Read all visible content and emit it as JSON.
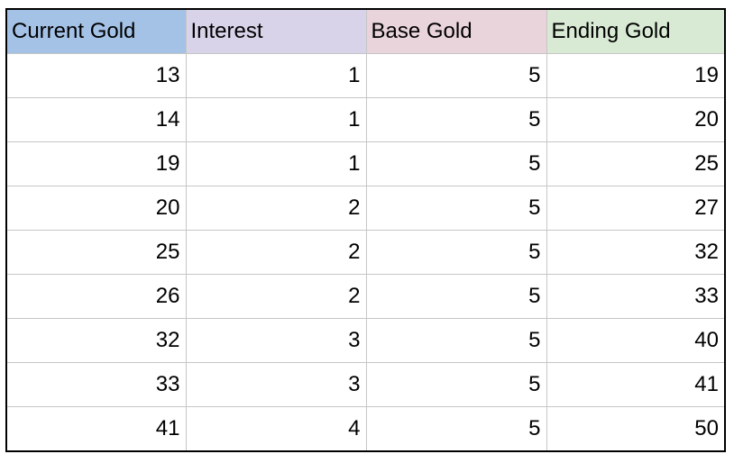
{
  "table": {
    "headers": [
      {
        "label": "Current Gold",
        "color": "#a4c2e6"
      },
      {
        "label": "Interest",
        "color": "#d8d3e9"
      },
      {
        "label": "Base Gold",
        "color": "#ead4db"
      },
      {
        "label": "Ending Gold",
        "color": "#d9ead4"
      }
    ],
    "rows": [
      [
        "13",
        "1",
        "5",
        "19"
      ],
      [
        "14",
        "1",
        "5",
        "20"
      ],
      [
        "19",
        "1",
        "5",
        "25"
      ],
      [
        "20",
        "2",
        "5",
        "27"
      ],
      [
        "25",
        "2",
        "5",
        "32"
      ],
      [
        "26",
        "2",
        "5",
        "33"
      ],
      [
        "32",
        "3",
        "5",
        "40"
      ],
      [
        "33",
        "3",
        "5",
        "41"
      ],
      [
        "41",
        "4",
        "5",
        "50"
      ]
    ]
  }
}
